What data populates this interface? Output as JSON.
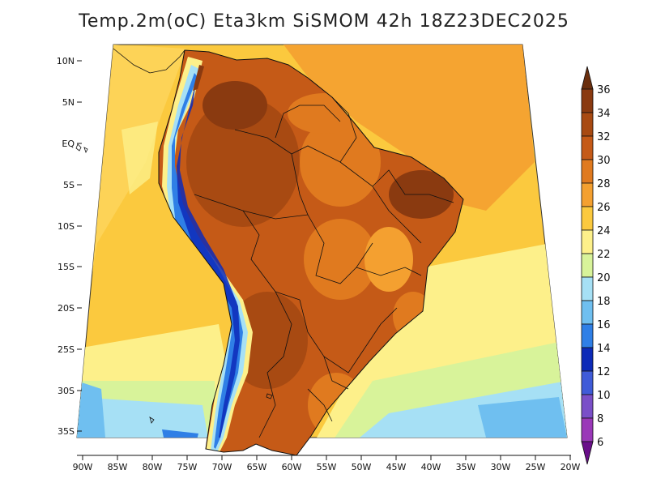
{
  "title": "Temp.2m(oC) Eta3km SiSMOM 42h 18Z23DEC2025",
  "map": {
    "variable": "Temp.2m",
    "units": "oC",
    "model": "Eta3km SiSMOM",
    "forecast_hour": "42h",
    "valid_time": "18Z23DEC2025",
    "lat_labels": [
      "10N",
      "5N",
      "EQ",
      "5S",
      "10S",
      "15S",
      "20S",
      "25S",
      "30S",
      "35S"
    ],
    "lon_labels": [
      "90W",
      "85W",
      "80W",
      "75W",
      "70W",
      "65W",
      "60W",
      "55W",
      "50W",
      "45W",
      "40W",
      "35W",
      "30W",
      "25W",
      "20W"
    ]
  },
  "colorbar": {
    "labels": [
      "36",
      "34",
      "32",
      "30",
      "28",
      "26",
      "24",
      "22",
      "20",
      "18",
      "16",
      "14",
      "12",
      "10",
      "8",
      "6"
    ],
    "colors": [
      "#6b2f0e",
      "#8a3a10",
      "#a84a12",
      "#c55a17",
      "#e07a1f",
      "#f4a030",
      "#fbc93e",
      "#fdf08a",
      "#d8f39a",
      "#a6e0f5",
      "#6fbff0",
      "#2f7fe6",
      "#0d2ab8",
      "#3f5bd8",
      "#7a4fc8",
      "#9a38b8",
      "#6a0f8a"
    ]
  }
}
